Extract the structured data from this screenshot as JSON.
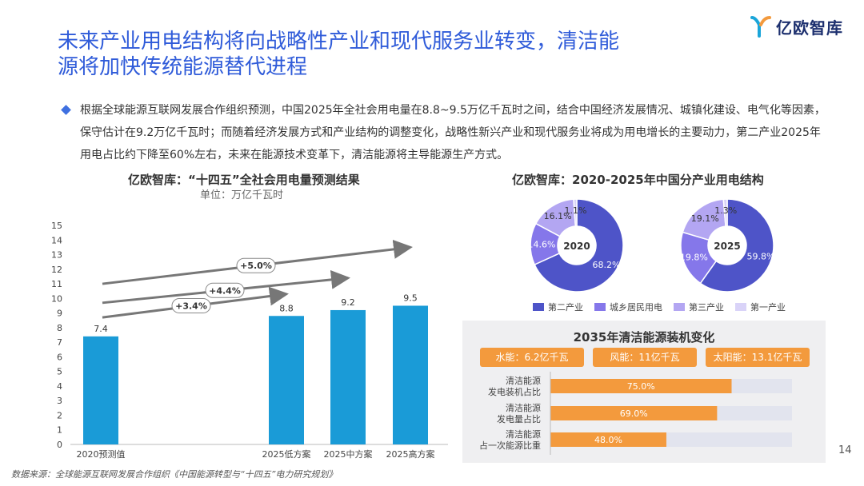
{
  "header": {
    "title_line1": "未来产业用电结构将向战略性产业和现代服务业转变，清洁能",
    "title_line2": "源将加快传统能源替代进程",
    "logo_text": "亿欧智库"
  },
  "summary": {
    "text": "根据全球能源互联网发展合作组织预测，中国2025年全社会用电量在8.8~9.5万亿千瓦时之间，结合中国经济发展情况、城镇化建设、电气化等因素，保守估计在9.2万亿千瓦时；而随着经济发展方式和产业结构的调整变化，战略性新兴产业和现代服务业将成为用电增长的主要动力，第二产业2025年用电占比约下降至60%左右，未来在能源技术变革下，清洁能源将主导能源生产方式。"
  },
  "colors": {
    "accent_blue": "#2f5bd9",
    "bar_blue": "#1a9bd7",
    "industry2": "#4e54c8",
    "urban_res": "#8577ea",
    "industry3": "#b3a6f2",
    "industry1": "#d9d3f8",
    "orange": "#f39a3d",
    "track": "#e2e4ee"
  },
  "chart_data": [
    {
      "type": "bar",
      "title": "亿欧智库：“十四五”全社会用电量预测结果",
      "subtitle": "单位：万亿千瓦时",
      "categories": [
        "2020预测值",
        "2025低方案",
        "2025中方案",
        "2025高方案"
      ],
      "values": [
        7.4,
        8.8,
        9.2,
        9.5
      ],
      "value_labels": [
        "7.4",
        "8.8",
        "9.2",
        "9.5"
      ],
      "ylim": [
        0,
        15
      ],
      "yticks": [
        "0",
        "1",
        "2",
        "3",
        "4",
        "5",
        "6",
        "7",
        "8",
        "9",
        "10",
        "11",
        "12",
        "13",
        "14",
        "15"
      ],
      "annotations": [
        "+3.4%",
        "+4.4%",
        "+5.0%"
      ]
    },
    {
      "type": "pie",
      "title": "亿欧智库：2020-2025年中国分产业用电结构",
      "legend": [
        "第二产业",
        "城乡居民用电",
        "第三产业",
        "第一产业"
      ],
      "charts": [
        {
          "center_label": "2020",
          "values": [
            68.2,
            14.6,
            16.1,
            1.1
          ],
          "labels": [
            "68.2%",
            "14.6%",
            "16.1%",
            "1.1%"
          ]
        },
        {
          "center_label": "2025",
          "values": [
            59.8,
            19.8,
            19.1,
            1.3
          ],
          "labels": [
            "59.8%",
            "19.8%",
            "19.1%",
            "1.3%"
          ]
        }
      ]
    },
    {
      "type": "bar",
      "orientation": "horizontal",
      "title": "2035年清洁能源装机变化",
      "highlights": [
        "水能：6.2亿千瓦",
        "风能：11亿千瓦",
        "太阳能：13.1亿千瓦"
      ],
      "categories": [
        [
          "清洁能源",
          "发电装机占比"
        ],
        [
          "清洁能源",
          "发电量占比"
        ],
        [
          "清洁能源",
          "占一次能源比重"
        ]
      ],
      "values": [
        75.0,
        69.0,
        48.0
      ],
      "value_labels": [
        "75.0%",
        "69.0%",
        "48.0%"
      ],
      "xlim": [
        0,
        100
      ]
    }
  ],
  "footer": {
    "page_number": "14",
    "source": "数据来源：全球能源互联网发展合作组织《中国能源转型与“十四五”电力研究规划》"
  }
}
